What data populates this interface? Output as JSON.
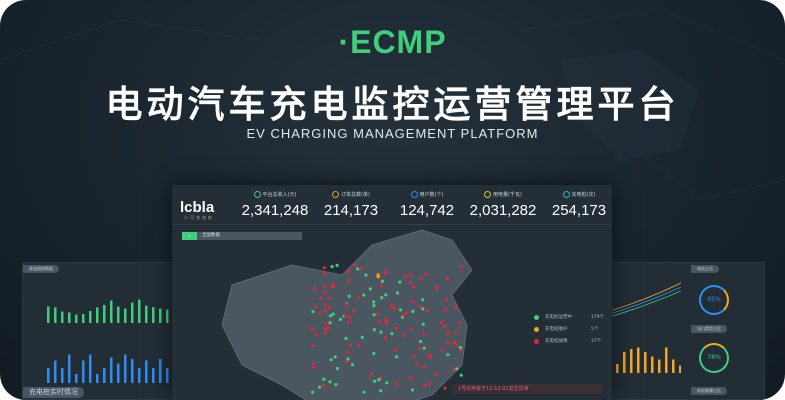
{
  "logo": "·ECMP",
  "title": "电动汽车充电监控运营管理平台",
  "subtitle": "EV CHARGING MANAGEMENT PLATFORM",
  "colors": {
    "accent": "#3ecf7a",
    "warning": "#f5a623",
    "danger": "#e8243c",
    "blue": "#2f8cf0"
  },
  "dashboard": {
    "brand": "lcbla",
    "brand_sub": "小可充电桩",
    "stats": [
      {
        "label": "平台总收入(元)",
        "value": "2,341,248",
        "icon": "coin-icon",
        "color": "#3ecf7a"
      },
      {
        "label": "订单总数(单)",
        "value": "214,173",
        "icon": "cart-icon",
        "color": "#d4a23a"
      },
      {
        "label": "用户数(个)",
        "value": "124,742",
        "icon": "user-icon",
        "color": "#2f8cf0"
      },
      {
        "label": "用电量(千瓦)",
        "value": "2,031,282",
        "icon": "battery-icon",
        "color": "#e0c020"
      },
      {
        "label": "充电桩(次)",
        "value": "254,173",
        "icon": "charger-icon",
        "color": "#2bc0b0"
      }
    ],
    "scope": "全国数据",
    "legend": [
      {
        "label": "充电桩运营中",
        "count": "179个",
        "color": "#3ecf7a"
      },
      {
        "label": "充电桩维护",
        "count": "5个",
        "color": "#f5a623"
      },
      {
        "label": "充电桩故障",
        "count": "37个",
        "color": "#e8243c"
      }
    ],
    "alert": "1号充电桩于11:12:01发生异常"
  },
  "left_panel": {
    "tag": "收益趋势数据",
    "tag2": "充电桩实时情况",
    "green_bars": [
      55,
      52,
      38,
      35,
      28,
      30,
      40,
      52,
      60,
      75,
      55,
      48,
      68,
      78,
      58,
      53,
      48,
      45,
      55,
      58
    ],
    "blue_bars": [
      50,
      75,
      50,
      95,
      30,
      75,
      95,
      30,
      50,
      85,
      65,
      95,
      80,
      50,
      75,
      50,
      80,
      50,
      80,
      85
    ]
  },
  "right_panel": {
    "tag1": "电站占比",
    "tag2": "出口类型占比",
    "tag3": "电站故障占比",
    "donut1": "85%",
    "donut2": "78%",
    "orange_bars": [
      60,
      30,
      70,
      80,
      85,
      70,
      55,
      45,
      85,
      45,
      25,
      75,
      75,
      45,
      45
    ]
  }
}
